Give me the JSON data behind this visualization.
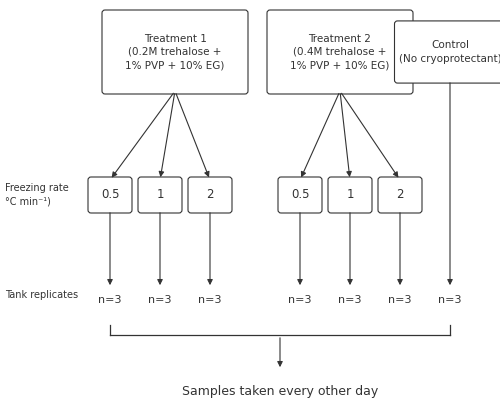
{
  "fig_width": 5.0,
  "fig_height": 4.08,
  "dpi": 100,
  "bg_color": "#ffffff",
  "box_color": "#ffffff",
  "box_edge_color": "#333333",
  "arrow_color": "#333333",
  "text_color": "#333333",
  "treatment1_label": "Treatment 1\n(0.2M trehalose +\n1% PVP + 10% EG)",
  "treatment2_label": "Treatment 2\n(0.4M trehalose +\n1% PVP + 10% EG)",
  "control_label": "Control\n(No cryoprotectant)",
  "freezing_rate_label": "Freezing rate\n°C min⁻¹)",
  "tank_replicates_label": "Tank replicates",
  "bottom_label": "Samples taken every other day",
  "rates": [
    "0.5",
    "1",
    "2"
  ],
  "n_label": "n=3",
  "font_size_box": 7.5,
  "font_size_label": 7.0,
  "font_size_rate": 8.5,
  "font_size_n": 8.0,
  "font_size_bottom": 9.0
}
